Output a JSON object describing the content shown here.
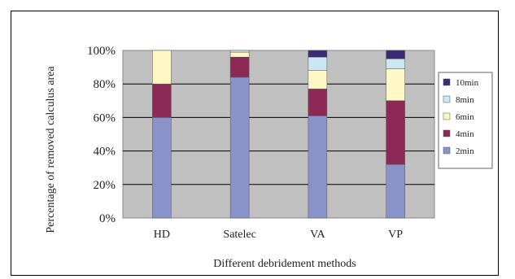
{
  "chart_data": {
    "type": "bar",
    "stacked": true,
    "title": "",
    "xlabel": "Different debridement methods",
    "ylabel": "Percentage of removed calculus area",
    "categories": [
      "HD",
      "Satelec",
      "VA",
      "VP"
    ],
    "series": [
      {
        "name": "2min",
        "color": "#8a93c9",
        "values": [
          60,
          84,
          61,
          32
        ]
      },
      {
        "name": "4min",
        "color": "#8c2a55",
        "values": [
          20,
          12,
          16,
          38
        ]
      },
      {
        "name": "6min",
        "color": "#fff7c6",
        "values": [
          20,
          3,
          11,
          19
        ]
      },
      {
        "name": "8min",
        "color": "#cce6f2",
        "values": [
          0,
          1,
          8,
          6
        ]
      },
      {
        "name": "10min",
        "color": "#3b2a75",
        "values": [
          0,
          0,
          4,
          5
        ]
      }
    ],
    "y_ticks": [
      "0%",
      "20%",
      "40%",
      "60%",
      "80%",
      "100%"
    ],
    "ylim": [
      0,
      100
    ],
    "grid": true,
    "plot_background": "#c0c0c0",
    "legend_position": "right"
  }
}
